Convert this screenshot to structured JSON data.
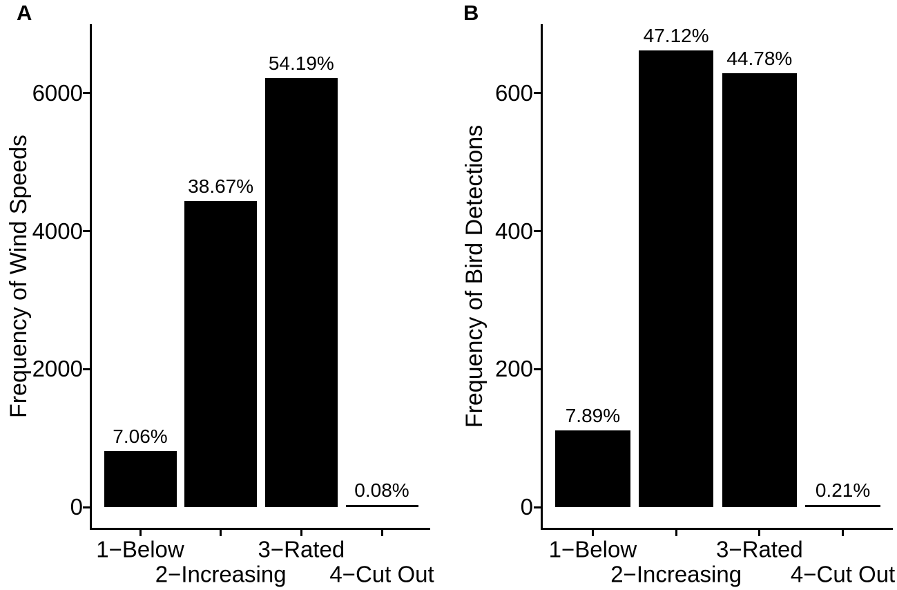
{
  "chart_data": [
    {
      "id": "A",
      "type": "bar",
      "panel_label": "A",
      "ylabel": "Frequency of Wind Speeds",
      "xlabel": "",
      "categories": [
        "1−Below",
        "2−Increasing",
        "3−Rated",
        "4−Cut Out"
      ],
      "values": [
        810,
        4440,
        6220,
        9
      ],
      "bar_labels": [
        "7.06%",
        "38.67%",
        "54.19%",
        "0.08%"
      ],
      "yticks": [
        0,
        2000,
        4000,
        6000
      ],
      "ylim": [
        0,
        7000
      ],
      "grid": false,
      "legend": false,
      "bar_color": "#000000",
      "axis_color": "#000000",
      "label_rows": [
        0,
        1,
        0,
        1
      ]
    },
    {
      "id": "B",
      "type": "bar",
      "panel_label": "B",
      "ylabel": "Frequency of Bird Detections",
      "xlabel": "",
      "categories": [
        "1−Below",
        "2−Increasing",
        "3−Rated",
        "4−Cut Out"
      ],
      "values": [
        111,
        662,
        629,
        3
      ],
      "bar_labels": [
        "7.89%",
        "47.12%",
        "44.78%",
        "0.21%"
      ],
      "yticks": [
        0,
        200,
        400,
        600
      ],
      "ylim": [
        0,
        700
      ],
      "grid": false,
      "legend": false,
      "bar_color": "#000000",
      "axis_color": "#000000",
      "label_rows": [
        0,
        1,
        0,
        1
      ]
    }
  ]
}
